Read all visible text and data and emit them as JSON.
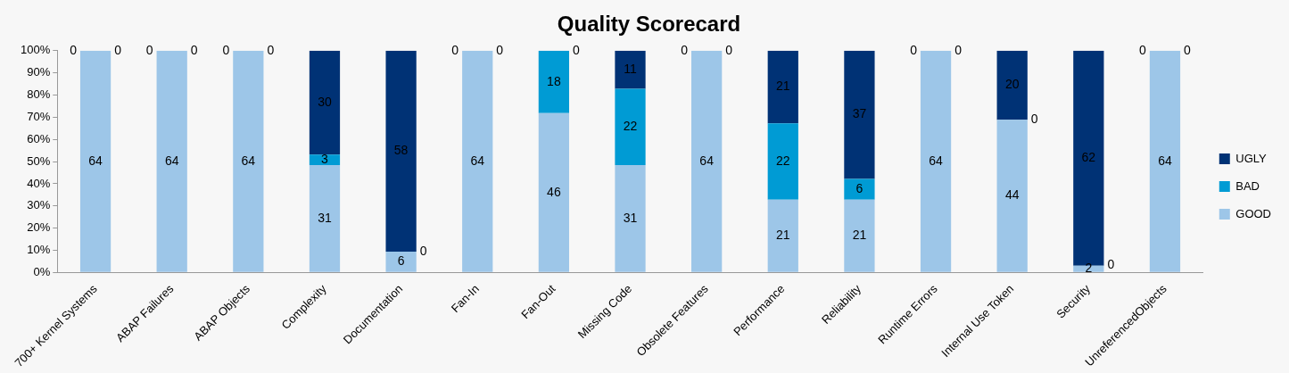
{
  "chart_data": {
    "type": "bar",
    "title": "Quality Scorecard",
    "stacked": true,
    "legend": "right",
    "grid": false,
    "categories": [
      "700+ Kernel Systems",
      "ABAP Failures",
      "ABAP Objects",
      "Complexity",
      "Documentation",
      "Fan-In",
      "Fan-Out",
      "Missing Code",
      "Obsolete Features",
      "Performance",
      "Reliability",
      "Runtime Errors",
      "Internal Use Token",
      "Security",
      "UnreferencedObjects"
    ],
    "ylim": [
      0,
      100
    ],
    "yticks": [
      {
        "value": 0,
        "label": "0%"
      },
      {
        "value": 10,
        "label": "10%"
      },
      {
        "value": 20,
        "label": "20%"
      },
      {
        "value": 30,
        "label": "30%"
      },
      {
        "value": 40,
        "label": "40%"
      },
      {
        "value": 50,
        "label": "50%"
      },
      {
        "value": 60,
        "label": "60%"
      },
      {
        "value": 70,
        "label": "70%"
      },
      {
        "value": 80,
        "label": "80%"
      },
      {
        "value": 90,
        "label": "90%"
      },
      {
        "value": 100,
        "label": "100%"
      }
    ],
    "series": [
      {
        "name": "GOOD",
        "color": "#9dc6e8",
        "values": [
          100,
          100,
          100,
          48.4,
          9.4,
          100,
          71.9,
          48.4,
          100,
          32.8,
          32.8,
          100,
          68.8,
          3.1,
          100
        ]
      },
      {
        "name": "BAD",
        "color": "#009bd4",
        "values": [
          0,
          0,
          0,
          4.7,
          0,
          0,
          28.1,
          34.4,
          0,
          34.4,
          9.4,
          0,
          0,
          0,
          0
        ]
      },
      {
        "name": "UGLY",
        "color": "#003275",
        "values": [
          0,
          0,
          0,
          46.9,
          90.6,
          0,
          0,
          17.2,
          0,
          32.8,
          57.8,
          0,
          31.2,
          96.9,
          0
        ]
      }
    ],
    "annotations": [
      "64",
      "0",
      "0",
      "64",
      "0",
      "0",
      "64",
      "0",
      "0",
      "31",
      "3",
      "30",
      "6",
      "0",
      "58",
      "64",
      "0",
      "0",
      "46",
      "18",
      "0",
      "31",
      "22",
      "11",
      "64",
      "0",
      "0",
      "21",
      "22",
      "21",
      "21",
      "6",
      "37",
      "64",
      "0",
      "0",
      "44",
      "0",
      "20",
      "2",
      "0",
      "62",
      "64",
      "0",
      "0"
    ]
  }
}
